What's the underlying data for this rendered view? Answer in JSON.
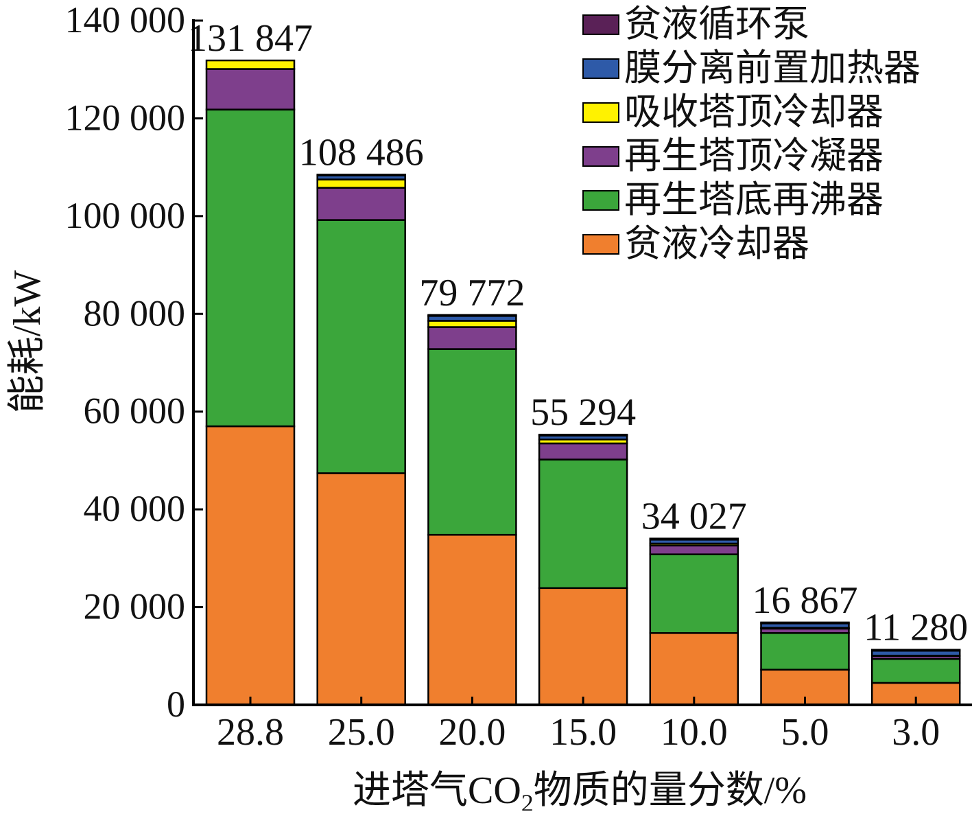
{
  "chart_data": {
    "type": "bar",
    "stacked": true,
    "title": "",
    "xlabel_parts": [
      "进塔气CO",
      "2",
      "物质的量分数/%"
    ],
    "ylabel": "能耗/kW",
    "ylim": [
      0,
      140000
    ],
    "yticks": [
      0,
      20000,
      40000,
      60000,
      80000,
      100000,
      120000,
      140000
    ],
    "ytick_labels": [
      "0",
      "20 000",
      "40 000",
      "60 000",
      "80 000",
      "100 000",
      "120 000",
      "140 000"
    ],
    "categories": [
      "28.8",
      "25.0",
      "20.0",
      "15.0",
      "10.0",
      "5.0",
      "3.0"
    ],
    "totals": [
      "131 847",
      "108 486",
      "79 772",
      "55 294",
      "34 027",
      "16 867",
      "11 280"
    ],
    "totals_values": [
      131847,
      108486,
      79772,
      55294,
      34027,
      16867,
      11280
    ],
    "grid": false,
    "legend_position": "top-right",
    "series": [
      {
        "name": "贫液冷却器",
        "color": "#F07F2E",
        "values": [
          57000,
          47400,
          34800,
          23900,
          14700,
          7200,
          4500
        ]
      },
      {
        "name": "再生塔底再沸器",
        "color": "#3BA63B",
        "values": [
          64800,
          51800,
          38000,
          26300,
          16100,
          7500,
          4900
        ]
      },
      {
        "name": "再生塔顶冷凝器",
        "color": "#7E3F8C",
        "values": [
          8300,
          6600,
          4500,
          3300,
          1800,
          900,
          600
        ]
      },
      {
        "name": "吸收塔顶冷却器",
        "color": "#FFF200",
        "values": [
          1747,
          1700,
          1272,
          800,
          400,
          167,
          80
        ]
      },
      {
        "name": "膜分离前置加热器",
        "color": "#2E5AA8",
        "values": [
          0,
          800,
          1000,
          800,
          800,
          900,
          1000
        ]
      },
      {
        "name": "贫液循环泵",
        "color": "#5A2157",
        "values": [
          0,
          186,
          200,
          194,
          227,
          200,
          200
        ]
      }
    ]
  }
}
